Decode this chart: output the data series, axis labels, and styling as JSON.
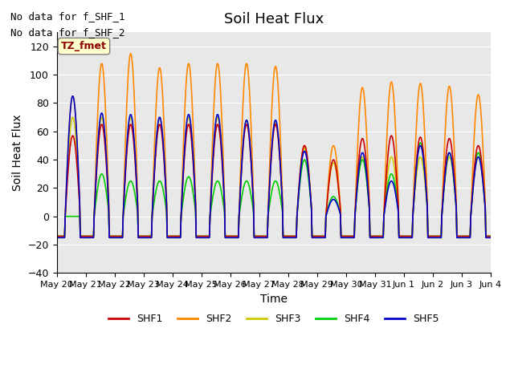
{
  "title": "Soil Heat Flux",
  "ylabel": "Soil Heat Flux",
  "xlabel": "Time",
  "ylim": [
    -40,
    130
  ],
  "yticks": [
    -40,
    -20,
    0,
    20,
    40,
    60,
    80,
    100,
    120
  ],
  "background_color": "#e8e8e8",
  "text_lines": [
    "No data for f_SHF_1",
    "No data for f_SHF_2"
  ],
  "legend_label": "TZ_fmet",
  "series_colors": {
    "SHF1": "#cc0000",
    "SHF2": "#ff8800",
    "SHF3": "#cccc00",
    "SHF4": "#00cc00",
    "SHF5": "#0000cc"
  },
  "xtick_labels": [
    "May 20",
    "May 21",
    "May 22",
    "May 23",
    "May 24",
    "May 25",
    "May 26",
    "May 27",
    "May 28",
    "May 29",
    "May 30",
    "May 31",
    "Jun 1",
    "Jun 2",
    "Jun 3",
    "Jun 4"
  ],
  "n_days": 15,
  "points_per_day": 48,
  "shf2_peaks": [
    85,
    108,
    115,
    105,
    108,
    108,
    108,
    106,
    50,
    50,
    91,
    95,
    94,
    92,
    86
  ],
  "shf1_peaks": [
    57,
    65,
    65,
    65,
    65,
    65,
    65,
    65,
    50,
    40,
    55,
    57,
    56,
    55,
    50
  ],
  "shf3_peaks": [
    70,
    70,
    70,
    70,
    70,
    70,
    68,
    66,
    48,
    38,
    42,
    42,
    42,
    42,
    42
  ],
  "shf4_peaks": [
    0,
    30,
    25,
    25,
    28,
    25,
    25,
    25,
    40,
    14,
    40,
    30,
    52,
    45,
    45
  ],
  "shf5_peaks": [
    85,
    73,
    72,
    70,
    72,
    72,
    68,
    68,
    46,
    12,
    45,
    25,
    50,
    45,
    42
  ],
  "night_val": -14
}
